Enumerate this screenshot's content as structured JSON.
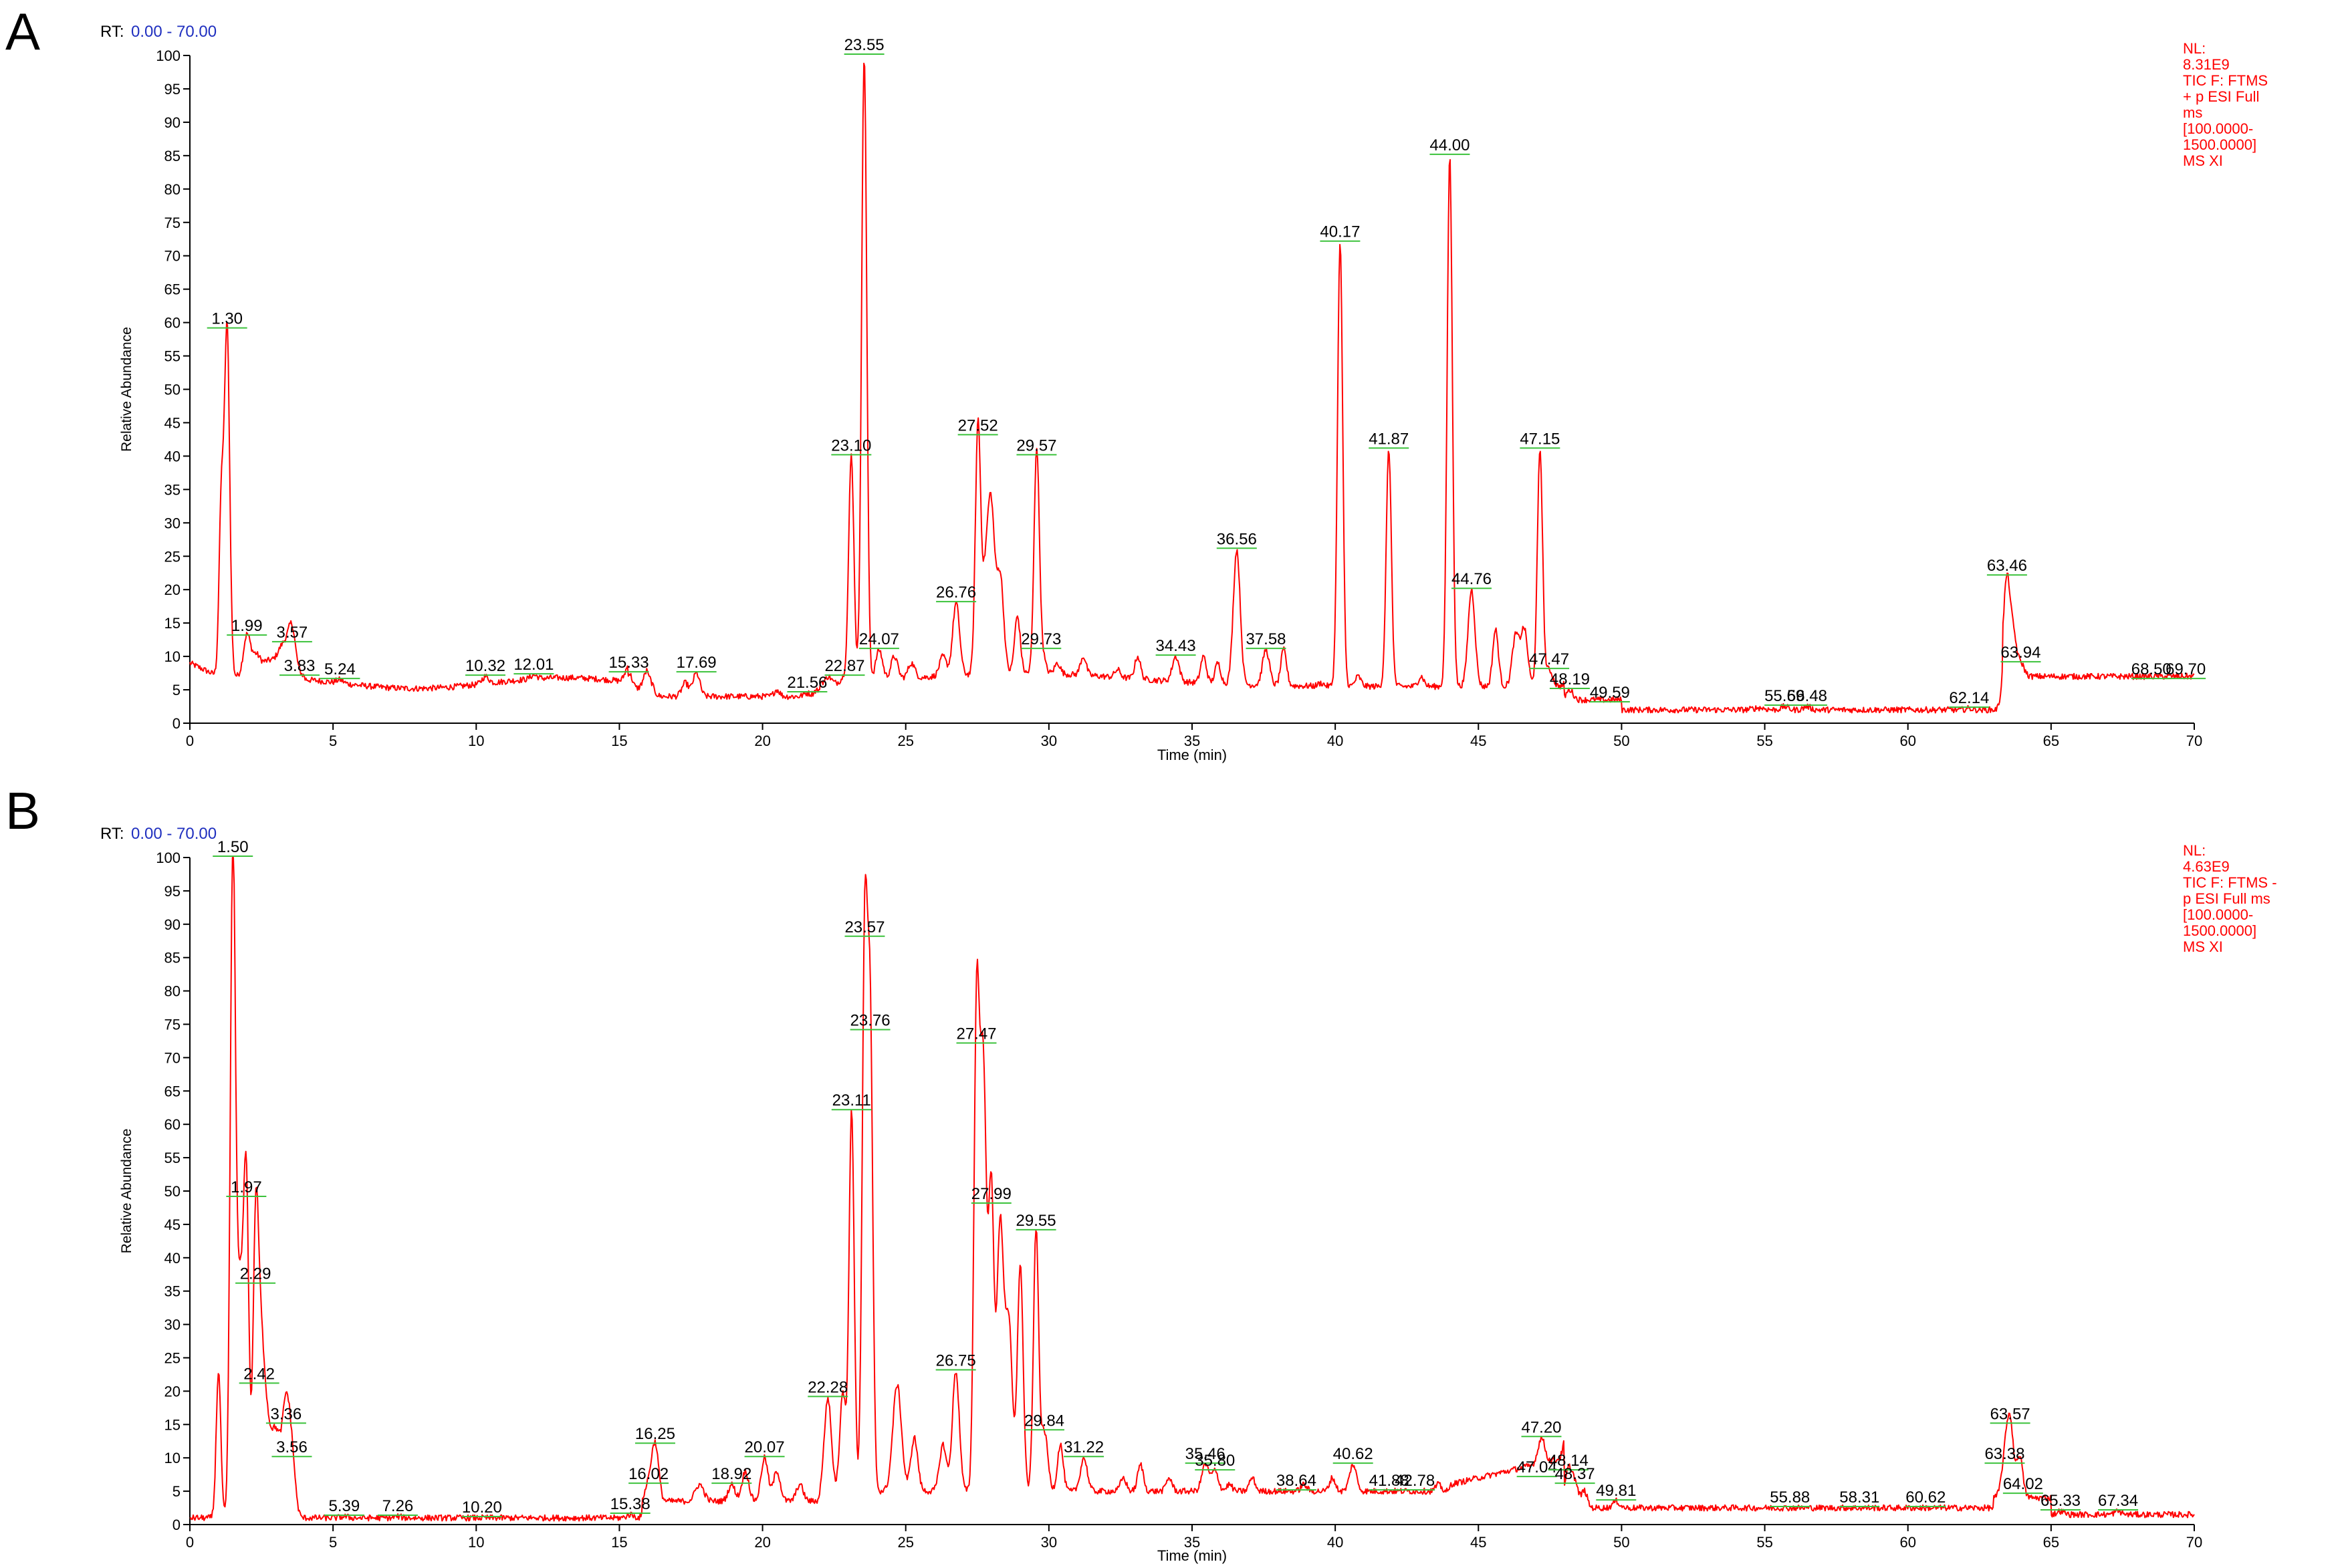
{
  "chart_data": [
    {
      "panel": "A",
      "type": "line",
      "rt_label": "RT:",
      "rt_range": "0.00 - 70.00",
      "xlabel": "Time (min)",
      "ylabel": "Relative Abundance",
      "xlim": [
        0,
        70
      ],
      "ylim": [
        0,
        100
      ],
      "x_ticks": [
        "0",
        "5",
        "10",
        "15",
        "20",
        "25",
        "30",
        "35",
        "40",
        "45",
        "50",
        "55",
        "60",
        "65",
        "70"
      ],
      "y_ticks": [
        "0",
        "5",
        "10",
        "15",
        "20",
        "25",
        "30",
        "35",
        "40",
        "45",
        "50",
        "55",
        "60",
        "65",
        "70",
        "75",
        "80",
        "85",
        "90",
        "95",
        "100"
      ],
      "info_lines": [
        "NL:",
        "8.31E9",
        "TIC F: FTMS",
        "+ p ESI Full",
        "ms",
        "[100.0000-",
        "1500.0000]",
        "MS XI"
      ],
      "peaks": [
        {
          "rt": 1.3,
          "label": "1.30",
          "y": 59
        },
        {
          "rt": 1.99,
          "label": "1.99",
          "y": 13
        },
        {
          "rt": 3.57,
          "label": "3.57",
          "y": 12
        },
        {
          "rt": 3.83,
          "label": "3.83",
          "y": 7
        },
        {
          "rt": 5.24,
          "label": "5.24",
          "y": 6.5
        },
        {
          "rt": 10.32,
          "label": "10.32",
          "y": 7
        },
        {
          "rt": 12.01,
          "label": "12.01",
          "y": 7.2
        },
        {
          "rt": 15.33,
          "label": "15.33",
          "y": 7.5
        },
        {
          "rt": 17.69,
          "label": "17.69",
          "y": 7.5
        },
        {
          "rt": 21.56,
          "label": "21.56",
          "y": 4.5
        },
        {
          "rt": 22.87,
          "label": "22.87",
          "y": 7
        },
        {
          "rt": 23.1,
          "label": "23.10",
          "y": 40
        },
        {
          "rt": 23.55,
          "label": "23.55",
          "y": 100
        },
        {
          "rt": 24.07,
          "label": "24.07",
          "y": 11
        },
        {
          "rt": 26.76,
          "label": "26.76",
          "y": 18
        },
        {
          "rt": 27.52,
          "label": "27.52",
          "y": 43
        },
        {
          "rt": 29.57,
          "label": "29.57",
          "y": 40
        },
        {
          "rt": 29.73,
          "label": "29.73",
          "y": 11
        },
        {
          "rt": 34.43,
          "label": "34.43",
          "y": 10
        },
        {
          "rt": 36.56,
          "label": "36.56",
          "y": 26
        },
        {
          "rt": 37.58,
          "label": "37.58",
          "y": 11
        },
        {
          "rt": 40.17,
          "label": "40.17",
          "y": 72
        },
        {
          "rt": 41.87,
          "label": "41.87",
          "y": 41
        },
        {
          "rt": 44.0,
          "label": "44.00",
          "y": 85
        },
        {
          "rt": 44.76,
          "label": "44.76",
          "y": 20
        },
        {
          "rt": 47.15,
          "label": "47.15",
          "y": 41
        },
        {
          "rt": 47.47,
          "label": "47.47",
          "y": 8
        },
        {
          "rt": 48.19,
          "label": "48.19",
          "y": 5
        },
        {
          "rt": 49.59,
          "label": "49.59",
          "y": 3
        },
        {
          "rt": 55.69,
          "label": "55.69",
          "y": 2.5
        },
        {
          "rt": 56.48,
          "label": "56.48",
          "y": 2.5
        },
        {
          "rt": 62.14,
          "label": "62.14",
          "y": 2.2
        },
        {
          "rt": 63.46,
          "label": "63.46",
          "y": 22
        },
        {
          "rt": 63.94,
          "label": "63.94",
          "y": 9
        },
        {
          "rt": 68.5,
          "label": "68.50",
          "y": 6.5
        },
        {
          "rt": 69.7,
          "label": "69.70",
          "y": 6.5
        }
      ]
    },
    {
      "panel": "B",
      "type": "line",
      "rt_label": "RT:",
      "rt_range": "0.00 - 70.00",
      "xlabel": "Time (min)",
      "ylabel": "Relative Abundance",
      "xlim": [
        0,
        70
      ],
      "ylim": [
        0,
        100
      ],
      "x_ticks": [
        "0",
        "5",
        "10",
        "15",
        "20",
        "25",
        "30",
        "35",
        "40",
        "45",
        "50",
        "55",
        "60",
        "65",
        "70"
      ],
      "y_ticks": [
        "0",
        "5",
        "10",
        "15",
        "20",
        "25",
        "30",
        "35",
        "40",
        "45",
        "50",
        "55",
        "60",
        "65",
        "70",
        "75",
        "80",
        "85",
        "90",
        "95",
        "100"
      ],
      "info_lines": [
        "NL:",
        "4.63E9",
        "TIC F: FTMS -",
        "p ESI Full ms",
        "[100.0000-",
        "1500.0000]",
        "MS XI"
      ],
      "peaks": [
        {
          "rt": 1.5,
          "label": "1.50",
          "y": 100
        },
        {
          "rt": 1.97,
          "label": "1.97",
          "y": 49
        },
        {
          "rt": 2.29,
          "label": "2.29",
          "y": 36
        },
        {
          "rt": 2.42,
          "label": "2.42",
          "y": 21
        },
        {
          "rt": 3.36,
          "label": "3.36",
          "y": 15
        },
        {
          "rt": 3.56,
          "label": "3.56",
          "y": 10
        },
        {
          "rt": 5.39,
          "label": "5.39",
          "y": 1.2
        },
        {
          "rt": 7.26,
          "label": "7.26",
          "y": 1.2
        },
        {
          "rt": 10.2,
          "label": "10.20",
          "y": 1
        },
        {
          "rt": 15.38,
          "label": "15.38",
          "y": 1.5
        },
        {
          "rt": 16.02,
          "label": "16.02",
          "y": 6
        },
        {
          "rt": 16.25,
          "label": "16.25",
          "y": 12
        },
        {
          "rt": 18.92,
          "label": "18.92",
          "y": 6
        },
        {
          "rt": 20.07,
          "label": "20.07",
          "y": 10
        },
        {
          "rt": 22.28,
          "label": "22.28",
          "y": 19
        },
        {
          "rt": 23.11,
          "label": "23.11",
          "y": 62
        },
        {
          "rt": 23.57,
          "label": "23.57",
          "y": 88
        },
        {
          "rt": 23.76,
          "label": "23.76",
          "y": 74
        },
        {
          "rt": 26.75,
          "label": "26.75",
          "y": 23
        },
        {
          "rt": 27.47,
          "label": "27.47",
          "y": 72
        },
        {
          "rt": 27.99,
          "label": "27.99",
          "y": 48
        },
        {
          "rt": 29.55,
          "label": "29.55",
          "y": 44
        },
        {
          "rt": 29.84,
          "label": "29.84",
          "y": 14
        },
        {
          "rt": 31.22,
          "label": "31.22",
          "y": 10
        },
        {
          "rt": 35.46,
          "label": "35.46",
          "y": 9
        },
        {
          "rt": 35.8,
          "label": "35.80",
          "y": 8
        },
        {
          "rt": 38.64,
          "label": "38.64",
          "y": 5
        },
        {
          "rt": 40.62,
          "label": "40.62",
          "y": 9
        },
        {
          "rt": 41.88,
          "label": "41.88",
          "y": 5
        },
        {
          "rt": 42.78,
          "label": "42.78",
          "y": 5
        },
        {
          "rt": 47.04,
          "label": "47.04",
          "y": 7
        },
        {
          "rt": 47.2,
          "label": "47.20",
          "y": 13
        },
        {
          "rt": 48.14,
          "label": "48.14",
          "y": 8
        },
        {
          "rt": 48.37,
          "label": "48.37",
          "y": 6
        },
        {
          "rt": 49.81,
          "label": "49.81",
          "y": 3.5
        },
        {
          "rt": 55.88,
          "label": "55.88",
          "y": 2.5
        },
        {
          "rt": 58.31,
          "label": "58.31",
          "y": 2.5
        },
        {
          "rt": 60.62,
          "label": "60.62",
          "y": 2.5
        },
        {
          "rt": 63.38,
          "label": "63.38",
          "y": 9
        },
        {
          "rt": 63.57,
          "label": "63.57",
          "y": 15
        },
        {
          "rt": 64.02,
          "label": "64.02",
          "y": 4.5
        },
        {
          "rt": 65.33,
          "label": "65.33",
          "y": 2
        },
        {
          "rt": 67.34,
          "label": "67.34",
          "y": 2
        }
      ]
    }
  ],
  "panel_letters": {
    "a": "A",
    "b": "B"
  },
  "colors": {
    "trace": "#ff0000",
    "rt_value": "#1f2fbf",
    "baseline_marker": "#3cc23c",
    "axis": "#000000"
  }
}
